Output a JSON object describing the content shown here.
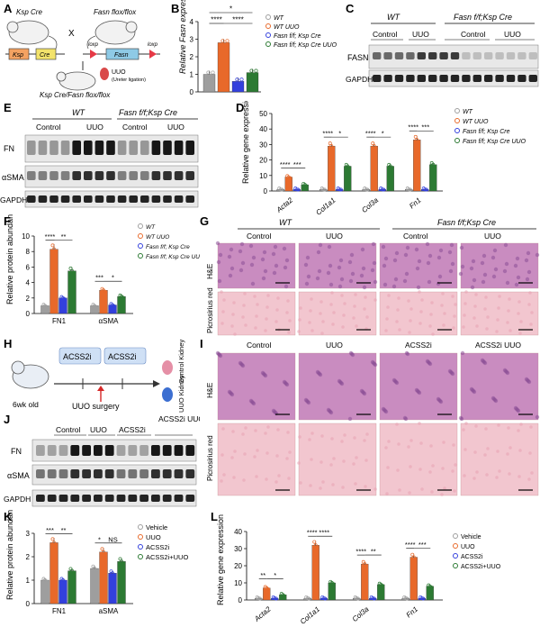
{
  "panel_letters": [
    "A",
    "B",
    "C",
    "D",
    "E",
    "F",
    "G",
    "H",
    "I",
    "J",
    "K",
    "L"
  ],
  "colors": {
    "vehicle": "#9e9e9e",
    "uuo": "#e8692a",
    "inhib": "#3340dd",
    "inhib_uuo": "#2c7a33",
    "he": "#c98cc0",
    "picro": "#f2c6cf"
  },
  "A": {
    "mouse1": "Ksp Cre",
    "mouse2": "Fasn flox/flox",
    "cross": "X",
    "ksp": "Ksp",
    "cre": "Cre",
    "loxp1": "loxp",
    "loxp2": "loxp",
    "fasn": "Fasn",
    "uuo": "UUO",
    "uuo_sub": "(Ureter ligation)",
    "bottom": "Ksp Cre/Fasn flox/flox"
  },
  "B": {
    "ylabel": "Relative Fasn expression",
    "legend": [
      "WT",
      "WT UUO",
      "Fasn f/f; Ksp Cre",
      "Fasn f/f; Ksp Cre UUO"
    ],
    "sig": [
      "*",
      "****",
      "****"
    ],
    "ticks": [
      "0",
      "1",
      "2",
      "3",
      "4"
    ]
  },
  "C": {
    "groups": [
      "WT",
      "Fasn f/f;Ksp Cre"
    ],
    "conds": [
      "Control",
      "UUO",
      "Control",
      "UUO"
    ],
    "rows": [
      "FASN",
      "GAPDH"
    ]
  },
  "D": {
    "ylabel": "Relative gene expression",
    "ticks": [
      "0",
      "10",
      "20",
      "30",
      "40",
      "50"
    ],
    "genes": [
      "Acta2",
      "Col1a1",
      "Col3a",
      "Fn1"
    ],
    "legend": [
      "WT",
      "WT UUO",
      "Fasn f/f; Ksp Cre",
      "Fasn f/f; Ksp Cre UUO"
    ],
    "sig": [
      "****",
      "***",
      "****",
      "*",
      "****",
      "*",
      "****",
      "***"
    ]
  },
  "E": {
    "groups": [
      "WT",
      "Fasn f/f;Ksp Cre"
    ],
    "conds": [
      "Control",
      "UUO",
      "Control",
      "UUO"
    ],
    "rows": [
      "FN",
      "αSMA",
      "GAPDH"
    ]
  },
  "F": {
    "ylabel": "Relative protein abundance",
    "ticks": [
      "0",
      "2",
      "4",
      "6",
      "8",
      "10"
    ],
    "cats": [
      "FN1",
      "αSMA"
    ],
    "legend": [
      "WT",
      "WT UUO",
      "Fasn f/f; Ksp Cre",
      "Fasn f/f; Ksp Cre UUO"
    ],
    "sig": [
      "****",
      "**",
      "***",
      "*"
    ]
  },
  "G": {
    "groups": [
      "WT",
      "Fasn f/f;Ksp Cre"
    ],
    "conds": [
      "Control",
      "UUO",
      "Control",
      "UUO"
    ],
    "rows": [
      "H&E",
      "Picrosirius red"
    ]
  },
  "H": {
    "drug1": "ACSS2i",
    "drug2": "ACSS2i",
    "age": "6wk old",
    "surgery": "UUO surgery",
    "kidney1": "Control Kidney",
    "kidney2": "UUO Kidney"
  },
  "I": {
    "conds": [
      "Control",
      "UUO",
      "ACSS2i",
      "ACSS2i UUO"
    ],
    "rows": [
      "H&E",
      "Picrosirius red"
    ]
  },
  "J": {
    "conds": [
      "Control",
      "UUO",
      "ACSS2i",
      "ACSS2i UUO"
    ],
    "rows": [
      "FN",
      "αSMA",
      "GAPDH"
    ]
  },
  "K": {
    "ylabel": "Relative protein abundance",
    "ticks": [
      "0",
      "1",
      "2",
      "3"
    ],
    "cats": [
      "FN1",
      "aSMA"
    ],
    "legend": [
      "Vehicle",
      "UUO",
      "ACSS2i",
      "ACSS2i+UUO"
    ],
    "sig": [
      "***",
      "**",
      "*",
      "NS"
    ]
  },
  "L": {
    "ylabel": "Relative gene expression",
    "ticks": [
      "0",
      "10",
      "20",
      "30",
      "40"
    ],
    "genes": [
      "Acta2",
      "Col1a1",
      "Col3a",
      "Fn1"
    ],
    "legend": [
      "Vehicle",
      "UUO",
      "ACSS2i",
      "ACSS2i+UUO"
    ],
    "sig": [
      "**",
      "*",
      "****",
      "****",
      "****",
      "**",
      "****",
      "***"
    ]
  },
  "chart_data": [
    {
      "panel": "B",
      "type": "bar",
      "ylabel": "Relative Fasn expression",
      "ylim": [
        0,
        4
      ],
      "categories": [
        "WT",
        "WT UUO",
        "Fasn f/f; Ksp Cre",
        "Fasn f/f; Ksp Cre UUO"
      ],
      "values": [
        1.0,
        2.8,
        0.6,
        1.1
      ]
    },
    {
      "panel": "D",
      "type": "bar",
      "ylabel": "Relative gene expression",
      "ylim": [
        0,
        50
      ],
      "categories": [
        "Acta2",
        "Col1a1",
        "Col3a",
        "Fn1"
      ],
      "series": [
        {
          "name": "WT",
          "values": [
            1,
            1,
            1,
            1
          ]
        },
        {
          "name": "WT UUO",
          "values": [
            9,
            29,
            29,
            33
          ]
        },
        {
          "name": "Fasn f/f; Ksp Cre",
          "values": [
            1,
            1,
            1,
            1
          ]
        },
        {
          "name": "Fasn f/f; Ksp Cre UUO",
          "values": [
            4,
            16,
            16,
            17
          ]
        }
      ]
    },
    {
      "panel": "F",
      "type": "bar",
      "ylabel": "Relative protein abundance",
      "ylim": [
        0,
        10
      ],
      "categories": [
        "FN1",
        "αSMA"
      ],
      "series": [
        {
          "name": "WT",
          "values": [
            1.0,
            1.0
          ]
        },
        {
          "name": "WT UUO",
          "values": [
            8.3,
            3.0
          ]
        },
        {
          "name": "Fasn f/f; Ksp Cre",
          "values": [
            2.0,
            1.1
          ]
        },
        {
          "name": "Fasn f/f; Ksp Cre UUO",
          "values": [
            5.5,
            2.2
          ]
        }
      ]
    },
    {
      "panel": "K",
      "type": "bar",
      "ylabel": "Relative protein abundance",
      "ylim": [
        0,
        3
      ],
      "categories": [
        "FN1",
        "aSMA"
      ],
      "series": [
        {
          "name": "Vehicle",
          "values": [
            1.0,
            1.5
          ]
        },
        {
          "name": "UUO",
          "values": [
            2.6,
            2.2
          ]
        },
        {
          "name": "ACSS2i",
          "values": [
            1.0,
            1.3
          ]
        },
        {
          "name": "ACSS2i+UUO",
          "values": [
            1.4,
            1.8
          ]
        }
      ]
    },
    {
      "panel": "L",
      "type": "bar",
      "ylabel": "Relative gene expression",
      "ylim": [
        0,
        40
      ],
      "categories": [
        "Acta2",
        "Col1a1",
        "Col3a",
        "Fn1"
      ],
      "series": [
        {
          "name": "Vehicle",
          "values": [
            1,
            1,
            1,
            1
          ]
        },
        {
          "name": "UUO",
          "values": [
            7,
            32,
            21,
            25
          ]
        },
        {
          "name": "ACSS2i",
          "values": [
            1,
            1,
            1,
            1
          ]
        },
        {
          "name": "ACSS2i+UUO",
          "values": [
            3,
            10,
            9,
            8
          ]
        }
      ]
    }
  ]
}
